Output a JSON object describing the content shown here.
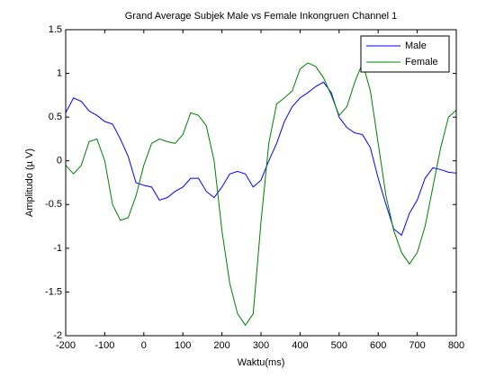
{
  "chart_data": {
    "type": "line",
    "title": "Grand Average Subjek Male vs Female Inkongruen Channel 1",
    "x_label": "Waktu(ms)",
    "y_label": "Amplitudo (µ V)",
    "x": [
      -200,
      -180,
      -160,
      -140,
      -120,
      -100,
      -80,
      -60,
      -40,
      -20,
      0,
      20,
      40,
      60,
      80,
      100,
      120,
      140,
      160,
      180,
      200,
      220,
      240,
      260,
      280,
      300,
      320,
      340,
      360,
      380,
      400,
      420,
      440,
      460,
      480,
      500,
      520,
      540,
      560,
      580,
      600,
      620,
      640,
      660,
      680,
      700,
      720,
      740,
      760,
      780,
      800
    ],
    "series": [
      {
        "name": "Male",
        "color": "#0000ff",
        "values": [
          0.55,
          0.72,
          0.68,
          0.57,
          0.52,
          0.45,
          0.42,
          0.25,
          0.05,
          -0.25,
          -0.28,
          -0.3,
          -0.45,
          -0.42,
          -0.35,
          -0.3,
          -0.2,
          -0.2,
          -0.35,
          -0.42,
          -0.3,
          -0.15,
          -0.12,
          -0.15,
          -0.3,
          -0.22,
          0,
          0.2,
          0.45,
          0.62,
          0.72,
          0.78,
          0.85,
          0.9,
          0.78,
          0.5,
          0.38,
          0.32,
          0.3,
          0.15,
          -0.2,
          -0.5,
          -0.78,
          -0.85,
          -0.6,
          -0.45,
          -0.2,
          -0.08,
          -0.1,
          -0.13,
          -0.14
        ]
      },
      {
        "name": "Female",
        "color": "#008000",
        "values": [
          -0.05,
          -0.15,
          -0.05,
          0.22,
          0.25,
          0,
          -0.5,
          -0.68,
          -0.65,
          -0.4,
          -0.05,
          0.2,
          0.25,
          0.22,
          0.2,
          0.3,
          0.55,
          0.52,
          0.4,
          0,
          -0.8,
          -1.4,
          -1.75,
          -1.88,
          -1.75,
          -0.7,
          0.2,
          0.65,
          0.72,
          0.8,
          1.05,
          1.12,
          1.08,
          0.95,
          0.75,
          0.52,
          0.62,
          0.9,
          1.12,
          0.8,
          0.2,
          -0.4,
          -0.8,
          -1.05,
          -1.18,
          -1.05,
          -0.75,
          -0.3,
          0.15,
          0.5,
          0.58
        ]
      }
    ],
    "xlim": [
      -200,
      800
    ],
    "xticks": [
      -200,
      -100,
      0,
      100,
      200,
      300,
      400,
      500,
      600,
      700,
      800
    ],
    "ylim": [
      -2,
      1.5
    ],
    "yticks": [
      -2,
      -1.5,
      -1,
      -0.5,
      0,
      0.5,
      1,
      1.5
    ],
    "grid": false,
    "legend": "northeast"
  }
}
